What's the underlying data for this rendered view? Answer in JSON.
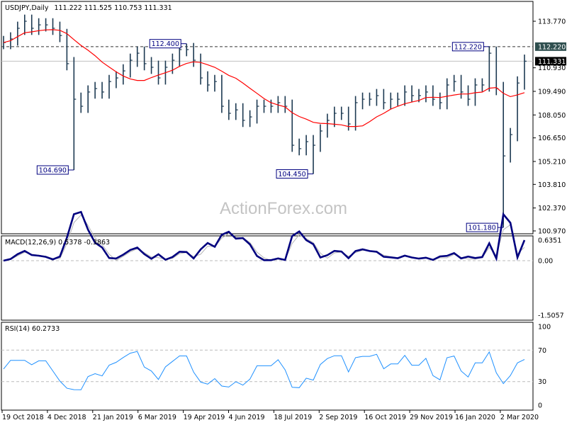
{
  "chart_data": {
    "type": "bar",
    "title": "USDJPY,Daily",
    "ohlc_header": "111.222 111.525 110.753 111.331",
    "watermark": "ActionForex.com",
    "x_ticks": [
      "19 Oct 2018",
      "4 Dec 2018",
      "21 Jan 2019",
      "6 Mar 2019",
      "19 Apr 2019",
      "4 Jun 2019",
      "18 Jul 2019",
      "2 Sep 2019",
      "16 Oct 2019",
      "29 Nov 2019",
      "16 Jan 2020",
      "2 Mar 2020"
    ],
    "price_axis": {
      "ylim": [
        100.97,
        113.77
      ],
      "ticks": [
        "113.770",
        "110.930",
        "109.490",
        "108.050",
        "106.650",
        "105.210",
        "103.810",
        "102.370",
        "100.970"
      ]
    },
    "weekly_close": [
      112.47,
      112.69,
      113.34,
      113.77,
      113.34,
      113.55,
      113.55,
      113.34,
      112.9,
      111.18,
      109.01,
      108.58,
      109.45,
      109.66,
      109.45,
      110.09,
      110.31,
      110.74,
      111.39,
      111.82,
      111.18,
      110.96,
      110.31,
      110.96,
      111.39,
      112.04,
      112.04,
      111.39,
      110.31,
      109.88,
      110.09,
      108.58,
      108.15,
      108.36,
      107.72,
      107.93,
      108.58,
      108.58,
      108.58,
      108.8,
      108.58,
      106.2,
      105.99,
      106.42,
      106.2,
      107.07,
      107.72,
      108.15,
      108.15,
      107.5,
      108.8,
      109.01,
      109.01,
      109.23,
      108.8,
      109.01,
      109.01,
      109.45,
      109.23,
      109.23,
      109.45,
      109.01,
      108.8,
      109.88,
      110.09,
      109.45,
      109.01,
      109.88,
      109.88,
      111.82,
      109.66,
      105.55,
      106.85,
      110.0,
      111.331
    ],
    "typical_range": 0.9,
    "ma_period_weeks": 11,
    "annotations": [
      {
        "label": "104.690",
        "index": 10,
        "type": "low",
        "value": 104.69
      },
      {
        "label": "112.400",
        "index": 26,
        "type": "high",
        "value": 112.4
      },
      {
        "label": "104.450",
        "index": 44,
        "type": "low",
        "value": 104.45
      },
      {
        "label": "112.220",
        "index": 69,
        "type": "high",
        "value": 112.22
      },
      {
        "label": "101.180",
        "index": 71,
        "type": "low",
        "value": 101.18
      }
    ],
    "levels": {
      "resistance": "112.220",
      "resistance_value": 112.22,
      "last": "111.331",
      "last_value": 111.331
    },
    "macd": {
      "label": "MACD(12,26,9) 0.5378 -0.3863",
      "ticks": [
        "0.6351",
        "0.00",
        "-1.5057"
      ],
      "ylim": [
        -1.5057,
        0.6351
      ]
    },
    "rsi": {
      "label": "RSI(14) 60.2733",
      "ticks": [
        "100",
        "70",
        "30",
        "0"
      ],
      "ylim": [
        0,
        100
      ]
    },
    "colors": {
      "bars": "#1d3a52",
      "ma": "#ff0000",
      "macd": "#00007f",
      "signal": "#b4b4b4",
      "rsi": "#1e90ff",
      "label": "#000080"
    }
  }
}
